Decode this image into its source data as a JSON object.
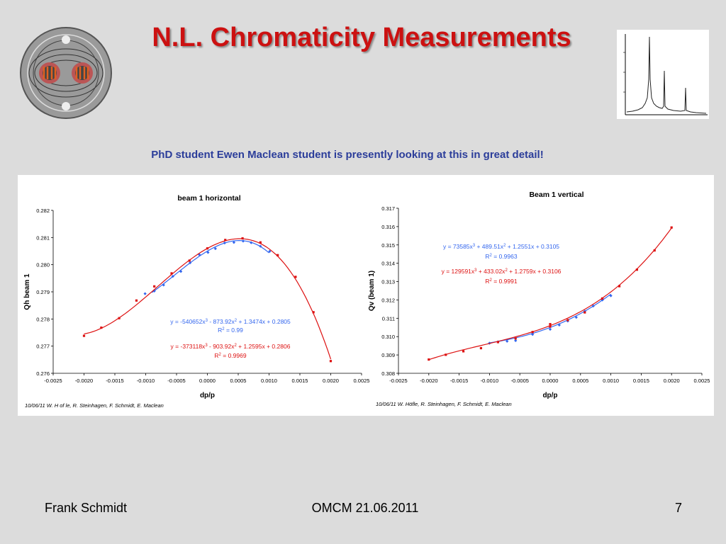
{
  "slide": {
    "title": "N.L. Chromaticity Measurements",
    "subtitle": "PhD student Ewen Maclean student is presently looking at this in great detail!",
    "footer_left": "Frank Schmidt",
    "footer_center": "OMCM 21.06.2011",
    "footer_right": "7"
  },
  "colors": {
    "title": "#cc1111",
    "subtitle": "#2b3d9a",
    "blue_series": "#3366ee",
    "red_series": "#dd1111"
  },
  "chart_data": [
    {
      "type": "scatter",
      "title": "beam 1 horizontal",
      "xlabel": "dp/p",
      "ylabel": "Qh beam 1",
      "xlim": [
        -0.0025,
        0.0025
      ],
      "ylim": [
        0.276,
        0.282
      ],
      "xticks": [
        "-0.0025",
        "-0.0020",
        "-0.0015",
        "-0.0010",
        "-0.0005",
        "0.0000",
        "0.0005",
        "0.0010",
        "0.0015",
        "0.0020",
        "0.0025"
      ],
      "yticks": [
        "0.276",
        "0.277",
        "0.278",
        "0.279",
        "0.280",
        "0.281",
        "0.282"
      ],
      "xtick_values": [
        -0.0025,
        -0.002,
        -0.0015,
        -0.001,
        -0.0005,
        0,
        0.0005,
        0.001,
        0.0015,
        0.002,
        0.0025
      ],
      "ytick_values": [
        0.276,
        0.277,
        0.278,
        0.279,
        0.28,
        0.281,
        0.282
      ],
      "series": [
        {
          "color": "#3366ee",
          "coeffs": [
            -540652,
            -873.92,
            1.3474,
            0.2805
          ],
          "fit_range": [
            -0.0009,
            0.001
          ],
          "fit_label": "y = -540652x",
          "fit_label_rest": " - 873.92x",
          "fit_label_tail": " + 1.3474x + 0.2805",
          "r2": " = 0.99",
          "points": [
            [
              -0.00101,
              0.27893
            ],
            [
              -0.00086,
              0.27903
            ],
            [
              -0.00071,
              0.27925
            ],
            [
              -0.00056,
              0.27957
            ],
            [
              -0.00043,
              0.27975
            ],
            [
              -0.00028,
              0.28007
            ],
            [
              -0.00013,
              0.28037
            ],
            [
              1e-05,
              0.28045
            ],
            [
              0.00013,
              0.28059
            ],
            [
              0.00028,
              0.2808
            ],
            [
              0.00043,
              0.28082
            ],
            [
              0.00058,
              0.28087
            ],
            [
              0.00071,
              0.28081
            ],
            [
              0.00086,
              0.28068
            ],
            [
              0.00101,
              0.28049
            ]
          ]
        },
        {
          "color": "#dd1111",
          "coeffs": [
            -373118,
            -903.92,
            1.2595,
            0.2806
          ],
          "fit_range": [
            -0.002,
            0.002
          ],
          "fit_label": "y = -373118x",
          "fit_label_rest": " - 903.92x",
          "fit_label_tail": " + 1.2595x + 0.2806",
          "r2": " = 0.9969",
          "points": [
            [
              -0.002,
              0.27738
            ],
            [
              -0.00172,
              0.27768
            ],
            [
              -0.00143,
              0.27803
            ],
            [
              -0.00115,
              0.27868
            ],
            [
              -0.00086,
              0.2792
            ],
            [
              -0.00058,
              0.27968
            ],
            [
              -0.00029,
              0.28015
            ],
            [
              0.0,
              0.2806
            ],
            [
              0.00029,
              0.28091
            ],
            [
              0.00057,
              0.28097
            ],
            [
              0.00086,
              0.28082
            ],
            [
              0.00114,
              0.28035
            ],
            [
              0.00143,
              0.27955
            ],
            [
              0.00172,
              0.27825
            ],
            [
              0.002,
              0.27645
            ]
          ]
        }
      ],
      "credit": "10/06/11   W. H of le, R. Steinhagen, F. Schmidt, E. Maclean"
    },
    {
      "type": "scatter",
      "title": "Beam 1 vertical",
      "xlabel": "dp/p",
      "ylabel": "Qv (beam 1)",
      "xlim": [
        -0.0025,
        0.0025
      ],
      "ylim": [
        0.308,
        0.317
      ],
      "xticks": [
        "-0.0025",
        "-0.0020",
        "-0.0015",
        "-0.0010",
        "-0.0005",
        "0.0000",
        "0.0005",
        "0.0010",
        "0.0015",
        "0.0020",
        "0.0025"
      ],
      "yticks": [
        "0.308",
        "0.309",
        "0.310",
        "0.311",
        "0.312",
        "0.313",
        "0.314",
        "0.315",
        "0.316",
        "0.317"
      ],
      "xtick_values": [
        -0.0025,
        -0.002,
        -0.0015,
        -0.001,
        -0.0005,
        0,
        0.0005,
        0.001,
        0.0015,
        0.002,
        0.0025
      ],
      "ytick_values": [
        0.308,
        0.309,
        0.31,
        0.311,
        0.312,
        0.313,
        0.314,
        0.315,
        0.316,
        0.317
      ],
      "series": [
        {
          "color": "#3366ee",
          "coeffs": [
            73585,
            489.51,
            1.2551,
            0.3105
          ],
          "fit_range": [
            -0.001,
            0.001
          ],
          "fit_label": "y = 73585x",
          "fit_label_rest": " + 489.51x",
          "fit_label_tail": " + 1.2551x + 0.3105",
          "r2": " = 0.9963",
          "points": [
            [
              -0.001,
              0.30964
            ],
            [
              -0.00086,
              0.30972
            ],
            [
              -0.00071,
              0.30975
            ],
            [
              -0.00057,
              0.30978
            ],
            [
              -0.00029,
              0.31012
            ],
            [
              0.0,
              0.3104
            ],
            [
              0.00015,
              0.31063
            ],
            [
              0.00029,
              0.31085
            ],
            [
              0.00043,
              0.31105
            ],
            [
              0.00057,
              0.31138
            ],
            [
              0.00071,
              0.31167
            ],
            [
              0.00086,
              0.312
            ],
            [
              0.001,
              0.31223
            ]
          ]
        },
        {
          "color": "#dd1111",
          "coeffs": [
            129591,
            433.02,
            1.2759,
            0.3106
          ],
          "fit_range": [
            -0.002,
            0.002
          ],
          "fit_label": "y = 129591x",
          "fit_label_rest": " + 433.02x",
          "fit_label_tail": " + 1.2759x + 0.3106",
          "r2": " = 0.9991",
          "points": [
            [
              -0.002,
              0.30875
            ],
            [
              -0.00172,
              0.30901
            ],
            [
              -0.00143,
              0.3092
            ],
            [
              -0.00114,
              0.30937
            ],
            [
              -0.00086,
              0.3097
            ],
            [
              -0.00057,
              0.3099
            ],
            [
              -0.00029,
              0.31025
            ],
            [
              0.0,
              0.31055
            ],
            [
              0.0,
              0.31068
            ],
            [
              0.00029,
              0.3109
            ],
            [
              0.00057,
              0.31132
            ],
            [
              0.00086,
              0.31208
            ],
            [
              0.00114,
              0.31275
            ],
            [
              0.00143,
              0.31365
            ],
            [
              0.00172,
              0.3147
            ],
            [
              0.002,
              0.31595
            ]
          ]
        }
      ],
      "credit": "10/06/11   W. Höfle, R. Steinhagen, F. Schmidt, E. Maclean"
    }
  ]
}
